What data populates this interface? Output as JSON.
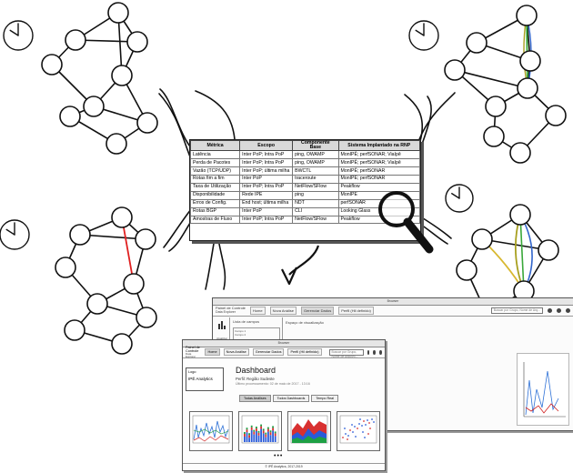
{
  "metrics_table": {
    "headers": [
      "Métrica",
      "Escopo",
      "Componente Base",
      "Sistema Implantado na RNP"
    ],
    "rows": [
      [
        "Latência",
        "Inter PoP; Intra PoP",
        "ping, OWAMP",
        "MonIPÊ; perfSONAR; ViaIpê"
      ],
      [
        "Perda de Pacotes",
        "Inter PoP; Intra PoP",
        "ping, OWAMP",
        "MonIPÊ; perfSONAR; ViaIpê"
      ],
      [
        "Vazão (TCP/UDP)",
        "Inter PoP; última milha",
        "BWCTL",
        "MonIPÊ; perfSONAR"
      ],
      [
        "Rotas fim a fim",
        "Inter PoP",
        "traceroute",
        "MonIPÊ; perfSONAR"
      ],
      [
        "Taxa de Utilização",
        "Inter PoP; Intra PoP",
        "NetFlow/SFlow",
        "Peakflow"
      ],
      [
        "Disponibilidade",
        "Rede IPÊ",
        "ping",
        "MonIPÊ"
      ],
      [
        "Erros de Config.",
        "End host; última milha",
        "NDT",
        "perfSONAR"
      ],
      [
        "Rotas BGP",
        "Inter PoP",
        "CLI",
        "Looking Glass"
      ],
      [
        "Amostras de Fluxo",
        "Inter PoP; Intra PoP",
        "NetFlow/SFlow",
        "Peakflow"
      ]
    ]
  },
  "colors": {
    "ink": "#111111",
    "path_red": "#e02020",
    "path_green": "#3aa83a",
    "path_blue": "#3366cc",
    "path_olive": "#a8a020",
    "path_gold": "#d8b830"
  },
  "icons": [
    "clock-icon",
    "magnifier-icon",
    "curved-arrow-icon"
  ],
  "mockup_back": {
    "window_title": "Browser",
    "panel_title": "Painel de Controle",
    "panel_subtitle": "Data Explorer",
    "tabs": [
      "Home",
      "Nova Análise",
      "Gerenciar Dados",
      "Perfil (Hil definido)"
    ],
    "search_placeholder": "Buscar por Grupo, Nome de Arq...",
    "fields_header": "Lista de campos",
    "viz_header": "Espaço de visualização",
    "side_label": "Atualizar",
    "field_items": [
      "Campo 1",
      "Campo 2"
    ]
  },
  "mockup_front": {
    "window_title": "Browser",
    "panel_title": "Painel de Controle",
    "panel_subtitle": "Data Explorer",
    "tabs": [
      "Home",
      "Nova Análise",
      "Gerenciar Dados",
      "Perfil (Hil definido)"
    ],
    "search_placeholder": "Buscar por Grupo, Nome de Arquivo...",
    "logo_label": "Logo",
    "logo_name": "IPÊ Analytics",
    "title": "Dashboard",
    "profile": "Perfil: Região Sudeste",
    "updated": "Último processamento: 02 de maio de 2017 - 13:16",
    "filter_tabs": [
      "Todas Análises",
      "Todos Dashboards",
      "Tempo Real"
    ],
    "more": "•••",
    "footer": "© IPÊ Analytics, 2017-2019"
  }
}
